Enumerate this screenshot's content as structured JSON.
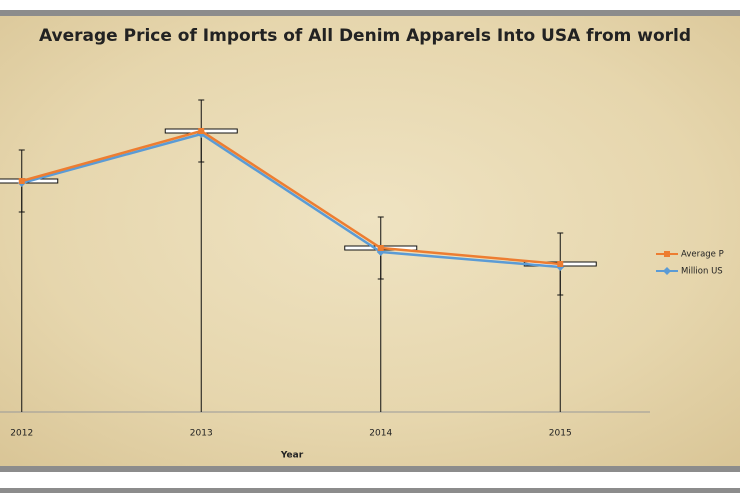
{
  "chart_data": {
    "type": "line",
    "title": "Average Price of Imports of All Denim Apparels Into USA from world",
    "x_label": "Year",
    "categories": [
      "2012",
      "2013",
      "2014",
      "2015"
    ],
    "series": [
      {
        "name": "Average P",
        "color": "#ed7d31",
        "marker": "square",
        "values": [
          231,
          281,
          164,
          148
        ],
        "errors": [
          31,
          31,
          31,
          31
        ]
      },
      {
        "name": "Million US",
        "color": "#5b9bd5",
        "marker": "diamond",
        "values": [
          229,
          278,
          160,
          145
        ]
      }
    ],
    "ylim": [
      0,
      352
    ],
    "legend": "right"
  }
}
